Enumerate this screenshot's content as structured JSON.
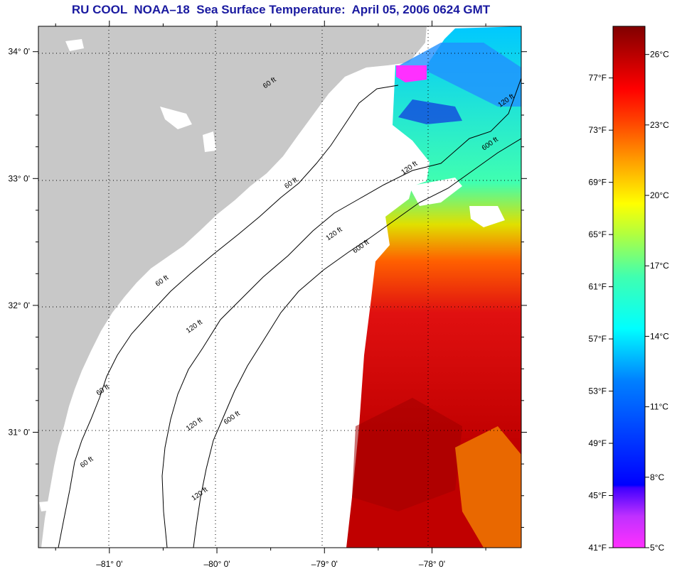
{
  "title": "RU COOL  NOAA–18  Sea Surface Temperature:  April 05, 2006 0624 GMT",
  "map": {
    "lon_range": [
      -81.66,
      -77.17
    ],
    "lat_range": [
      30.09,
      34.2
    ],
    "lat_ticks": [
      {
        "value": 34,
        "label": "34° 0'"
      },
      {
        "value": 33,
        "label": "33° 0'"
      },
      {
        "value": 32,
        "label": "32° 0'"
      },
      {
        "value": 31,
        "label": "31° 0'"
      }
    ],
    "lon_ticks": [
      {
        "value": -81,
        "label": "–81° 0'"
      },
      {
        "value": -80,
        "label": "–80° 0'"
      },
      {
        "value": -79,
        "label": "–79° 0'"
      },
      {
        "value": -78,
        "label": "–78° 0'"
      }
    ],
    "contour_labels": [
      {
        "text": "60 ft",
        "lon": -79.5,
        "lat": 33.74
      },
      {
        "text": "120 ft",
        "lon": -77.3,
        "lat": 33.6
      },
      {
        "text": "600 ft",
        "lon": -77.45,
        "lat": 33.26
      },
      {
        "text": "120 ft",
        "lon": -78.2,
        "lat": 33.07
      },
      {
        "text": "60 ft",
        "lon": -79.3,
        "lat": 32.95
      },
      {
        "text": "120 ft",
        "lon": -78.9,
        "lat": 32.55
      },
      {
        "text": "600 ft",
        "lon": -78.65,
        "lat": 32.45
      },
      {
        "text": "60 ft",
        "lon": -80.5,
        "lat": 32.18
      },
      {
        "text": "120 ft",
        "lon": -80.2,
        "lat": 31.82
      },
      {
        "text": "60 ft",
        "lon": -81.05,
        "lat": 31.32
      },
      {
        "text": "600 ft",
        "lon": -79.85,
        "lat": 31.1
      },
      {
        "text": "120 ft",
        "lon": -80.2,
        "lat": 31.05
      },
      {
        "text": "60 ft",
        "lon": -81.2,
        "lat": 30.75
      },
      {
        "text": "120 ft",
        "lon": -80.15,
        "lat": 30.5
      }
    ],
    "colors": {
      "land": "#c8c8c8",
      "water_nodata": "#ffffff",
      "grid": "#000000"
    }
  },
  "colorbar": {
    "labels_f": [
      "77°F",
      "73°F",
      "69°F",
      "65°F",
      "61°F",
      "57°F",
      "53°F",
      "49°F",
      "45°F",
      "41°F"
    ],
    "labels_c": [
      "26°C",
      "23°C",
      "20°C",
      "17°C",
      "14°C",
      "11°C",
      "8°C",
      "5°C"
    ],
    "range_c": [
      5,
      27.2
    ],
    "stops": [
      "#ff30ff",
      "#0000ff",
      "#00ffff",
      "#00ff80",
      "#ffff00",
      "#ff8000",
      "#ff0000",
      "#800000"
    ]
  }
}
